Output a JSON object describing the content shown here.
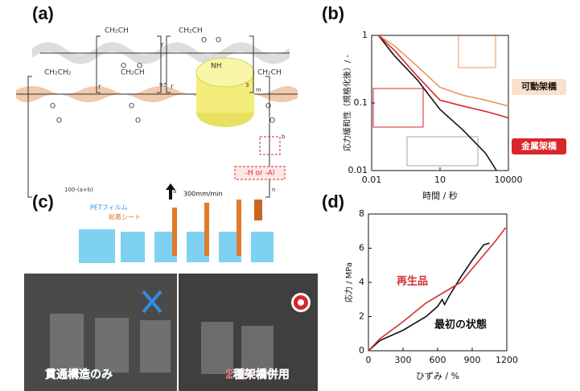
{
  "panel_labels": [
    "(a)",
    "(b)",
    "(c)",
    "(d)"
  ],
  "figure_a": {
    "top_groups": [
      "CH₂CH",
      "CH₂CH",
      "NH",
      "O",
      "O",
      "O",
      "O"
    ],
    "top_r": "r",
    "top_subscripts": [
      "97",
      "3",
      "m"
    ],
    "bottom_groups": [
      "CH₂CH₂",
      "CH₂CH",
      "CH₂CH",
      "O",
      "O",
      "O",
      "O",
      "O",
      "O"
    ],
    "bottom_r": [
      "r",
      "r"
    ],
    "bottom_subscripts": [
      "100-(a+b)",
      "a",
      "b",
      "n"
    ],
    "note": "-H or -Al"
  },
  "figure_c": {
    "labels": [
      "PETフィルム",
      "粘着シート",
      "300mm/min"
    ],
    "captions": [
      "貫通構造のみ",
      "2種架橋併用"
    ]
  },
  "chart_data": [
    {
      "type": "line",
      "xlabel": "時間 / 秒",
      "ylabel": "応力緩和性（規格化後）/ -",
      "x": [
        0.02,
        0.1,
        1,
        10,
        100,
        1000,
        3000,
        10000
      ],
      "series": [
        {
          "name": "black",
          "color": "#111111",
          "values": [
            1,
            0.5,
            0.22,
            0.08,
            0.04,
            0.018,
            0.01,
            null
          ]
        },
        {
          "name": "orange",
          "color": "#e8955a",
          "values": [
            1,
            0.7,
            0.35,
            0.17,
            0.13,
            0.11,
            0.1,
            0.09
          ]
        },
        {
          "name": "red",
          "color": "#d9262b",
          "values": [
            1,
            0.6,
            0.25,
            0.11,
            0.09,
            0.075,
            0.068,
            0.06
          ]
        }
      ],
      "xlog": true,
      "ylog": true,
      "xlim": [
        0.01,
        10000
      ],
      "ylim": [
        0.01,
        1
      ],
      "xticks": [
        0.01,
        10,
        10000
      ],
      "yticks": [
        0.01,
        0.1,
        1
      ],
      "annotations": [
        "可動架橋",
        "金属架橋"
      ]
    },
    {
      "type": "line",
      "xlabel": "ひずみ / %",
      "ylabel": "応力 / MPa",
      "series": [
        {
          "name": "最初の状態",
          "color": "#111111",
          "x": [
            0,
            100,
            300,
            500,
            600,
            640,
            660,
            700,
            800,
            900,
            1000,
            1050
          ],
          "values": [
            0,
            0.6,
            1.2,
            2.0,
            2.6,
            3.0,
            2.7,
            3.2,
            4.3,
            5.3,
            6.2,
            6.3
          ]
        },
        {
          "name": "再生品",
          "color": "#d32f2f",
          "x": [
            0,
            100,
            300,
            500,
            700,
            800,
            900,
            1000,
            1100,
            1190
          ],
          "values": [
            0,
            0.7,
            1.7,
            2.8,
            3.6,
            4.0,
            4.8,
            5.6,
            6.4,
            7.2
          ]
        }
      ],
      "xlim": [
        0,
        1200
      ],
      "ylim": [
        0,
        8
      ],
      "xticks": [
        0,
        300,
        600,
        900,
        1200
      ],
      "yticks": [
        0,
        2,
        4,
        6,
        8
      ]
    }
  ]
}
